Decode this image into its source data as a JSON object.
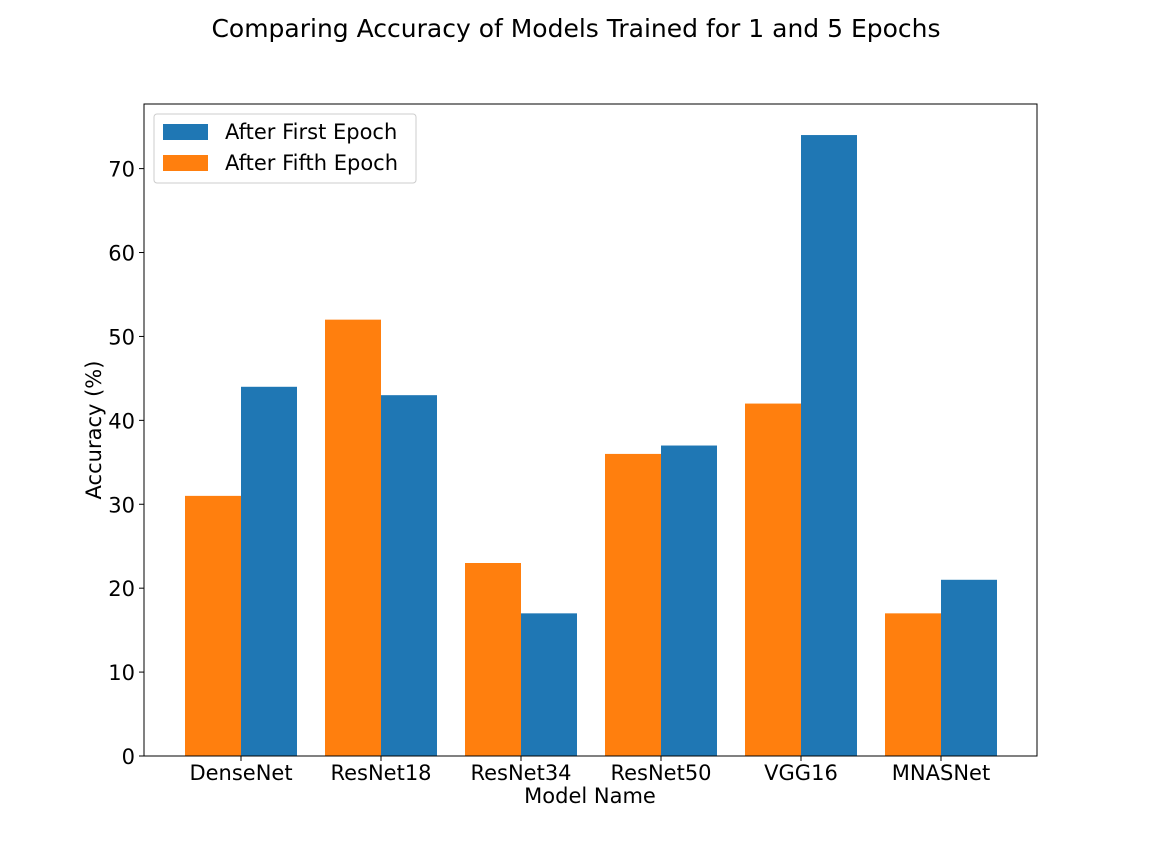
{
  "chart_data": {
    "type": "bar",
    "title": "Comparing Accuracy of Models Trained for 1 and 5 Epochs",
    "xlabel": "Model Name",
    "ylabel": "Accuracy (%)",
    "categories": [
      "DenseNet",
      "ResNet18",
      "ResNet34",
      "ResNet50",
      "VGG16",
      "MNASNet"
    ],
    "series": [
      {
        "name": "After Fifth Epoch",
        "color": "#ff7f0e",
        "values": [
          31,
          52,
          23,
          36,
          42,
          17
        ]
      },
      {
        "name": "After First Epoch",
        "color": "#1f77b4",
        "values": [
          44,
          43,
          17,
          37,
          74,
          21
        ]
      }
    ],
    "legend_order": [
      "After First Epoch",
      "After Fifth Epoch"
    ],
    "legend_position": "top-left",
    "ylim": [
      0,
      77.7
    ],
    "yticks": [
      0,
      10,
      20,
      30,
      40,
      50,
      60,
      70
    ],
    "grid": false
  }
}
